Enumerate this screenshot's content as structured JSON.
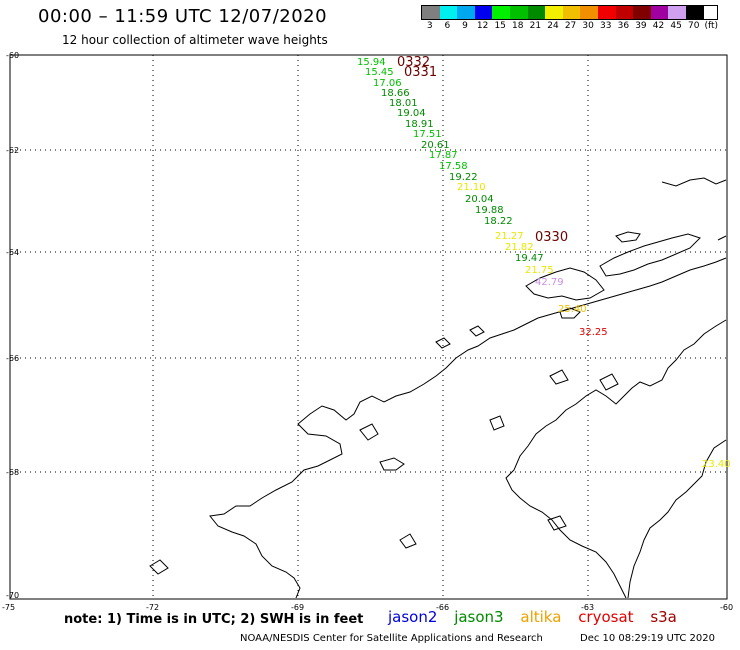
{
  "header": {
    "title": "00:00  –  11:59 UTC 12/07/2020",
    "subtitle": "12 hour collection of altimeter wave heights"
  },
  "legend": {
    "unit": "(ft)",
    "items": [
      {
        "label": "3",
        "color": "#7f7f7f"
      },
      {
        "label": "6",
        "color": "#00f0f0"
      },
      {
        "label": "9",
        "color": "#00a8f0"
      },
      {
        "label": "12",
        "color": "#0000f0"
      },
      {
        "label": "15",
        "color": "#00f000"
      },
      {
        "label": "18",
        "color": "#00c000"
      },
      {
        "label": "21",
        "color": "#008a00"
      },
      {
        "label": "24",
        "color": "#f0f000"
      },
      {
        "label": "27",
        "color": "#f0c000"
      },
      {
        "label": "30",
        "color": "#f09000"
      },
      {
        "label": "33",
        "color": "#f00000"
      },
      {
        "label": "36",
        "color": "#c00000"
      },
      {
        "label": "39",
        "color": "#800000"
      },
      {
        "label": "42",
        "color": "#a000a0"
      },
      {
        "label": "45",
        "color": "#d0a0f0"
      },
      {
        "label": "70",
        "color": "#000000"
      }
    ]
  },
  "axes": {
    "lat_labels": [
      "-60",
      "-62",
      "-64",
      "-66",
      "-68",
      "-70"
    ],
    "lon_labels": [
      "-75",
      "-72",
      "-69",
      "-66",
      "-63",
      "-60"
    ]
  },
  "observations": [
    {
      "text": "15.94",
      "color": "#00c000"
    },
    {
      "text": "15.45",
      "color": "#00c000"
    },
    {
      "text": "17.06",
      "color": "#00c000"
    },
    {
      "text": "18.66",
      "color": "#008a00"
    },
    {
      "text": "18.01",
      "color": "#008a00"
    },
    {
      "text": "19.04",
      "color": "#008a00"
    },
    {
      "text": "18.91",
      "color": "#008a00"
    },
    {
      "text": "17.51",
      "color": "#00c000"
    },
    {
      "text": "20.61",
      "color": "#008a00"
    },
    {
      "text": "17.87",
      "color": "#00c000"
    },
    {
      "text": "17.58",
      "color": "#00c000"
    },
    {
      "text": "19.22",
      "color": "#008a00"
    },
    {
      "text": "21.10",
      "color": "#e8e800"
    },
    {
      "text": "20.04",
      "color": "#008a00"
    },
    {
      "text": "19.88",
      "color": "#008a00"
    },
    {
      "text": "18.22",
      "color": "#008a00"
    },
    {
      "text": "21.27",
      "color": "#e8e800"
    },
    {
      "text": "21.82",
      "color": "#e8e800"
    },
    {
      "text": "19.47",
      "color": "#008a00"
    },
    {
      "text": "21.75",
      "color": "#e8e800"
    },
    {
      "text": "42.79",
      "color": "#c890e8"
    },
    {
      "text": "25.40",
      "color": "#f0c000"
    },
    {
      "text": "32.25",
      "color": "#e00000"
    },
    {
      "text": "23.40",
      "color": "#e8e800"
    }
  ],
  "pass_times": [
    "0332",
    "0331",
    "0330"
  ],
  "footer": {
    "note": "note: 1) Time is in UTC; 2) SWH is in feet",
    "satellites": [
      {
        "name": "jason2",
        "color": "#0000e0"
      },
      {
        "name": "jason3",
        "color": "#008a00"
      },
      {
        "name": "altika",
        "color": "#f0a000"
      },
      {
        "name": "cryosat",
        "color": "#e00000"
      },
      {
        "name": "s3a",
        "color": "#a00000"
      }
    ],
    "credit": "NOAA/NESDIS Center for Satellite Applications and Research",
    "timestamp": "Dec 10 08:29:19 UTC 2020"
  }
}
